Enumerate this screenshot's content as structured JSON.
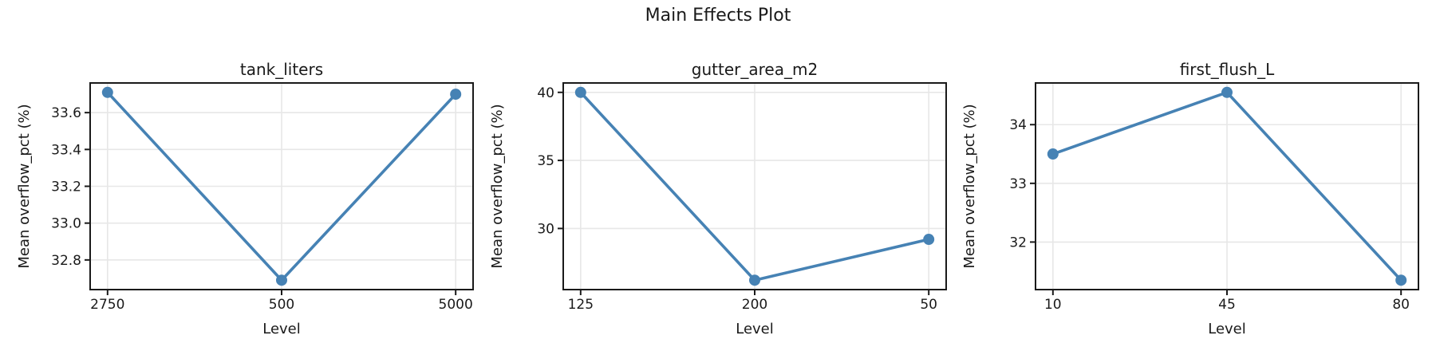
{
  "figure": {
    "title": "Main Effects Plot",
    "background": "#ffffff",
    "accent_color": "#4682b4",
    "grid_color": "#e7e7e7",
    "spine_color": "#1a1a1a",
    "text_color": "#1a1a1a"
  },
  "chart_data": [
    {
      "type": "line",
      "title": "tank_liters",
      "xlabel": "Level",
      "ylabel": "Mean overflow_pct (%)",
      "categories": [
        "2750",
        "500",
        "5000"
      ],
      "values": [
        33.71,
        32.69,
        33.7
      ],
      "ytick_values": [
        32.8,
        33.0,
        33.2,
        33.4,
        33.6
      ],
      "ytick_labels": [
        "32.8",
        "33.0",
        "33.2",
        "33.4",
        "33.6"
      ],
      "ylim": [
        32.639,
        33.761
      ],
      "xlim": [
        -0.1,
        2.1
      ],
      "grid": true,
      "legend": "none"
    },
    {
      "type": "line",
      "title": "gutter_area_m2",
      "xlabel": "Level",
      "ylabel": "Mean overflow_pct (%)",
      "categories": [
        "125",
        "200",
        "50"
      ],
      "values": [
        40.0,
        26.2,
        29.2
      ],
      "ytick_values": [
        30,
        35,
        40
      ],
      "ytick_labels": [
        "30",
        "35",
        "40"
      ],
      "ylim": [
        25.51,
        40.69
      ],
      "xlim": [
        -0.1,
        2.1
      ],
      "grid": true,
      "legend": "none"
    },
    {
      "type": "line",
      "title": "first_flush_L",
      "xlabel": "Level",
      "ylabel": "Mean overflow_pct (%)",
      "categories": [
        "10",
        "45",
        "80"
      ],
      "values": [
        33.5,
        34.55,
        31.35
      ],
      "ytick_values": [
        32,
        33,
        34
      ],
      "ytick_labels": [
        "32",
        "33",
        "34"
      ],
      "ylim": [
        31.19,
        34.71
      ],
      "xlim": [
        -0.1,
        2.1
      ],
      "grid": true,
      "legend": "none"
    }
  ]
}
